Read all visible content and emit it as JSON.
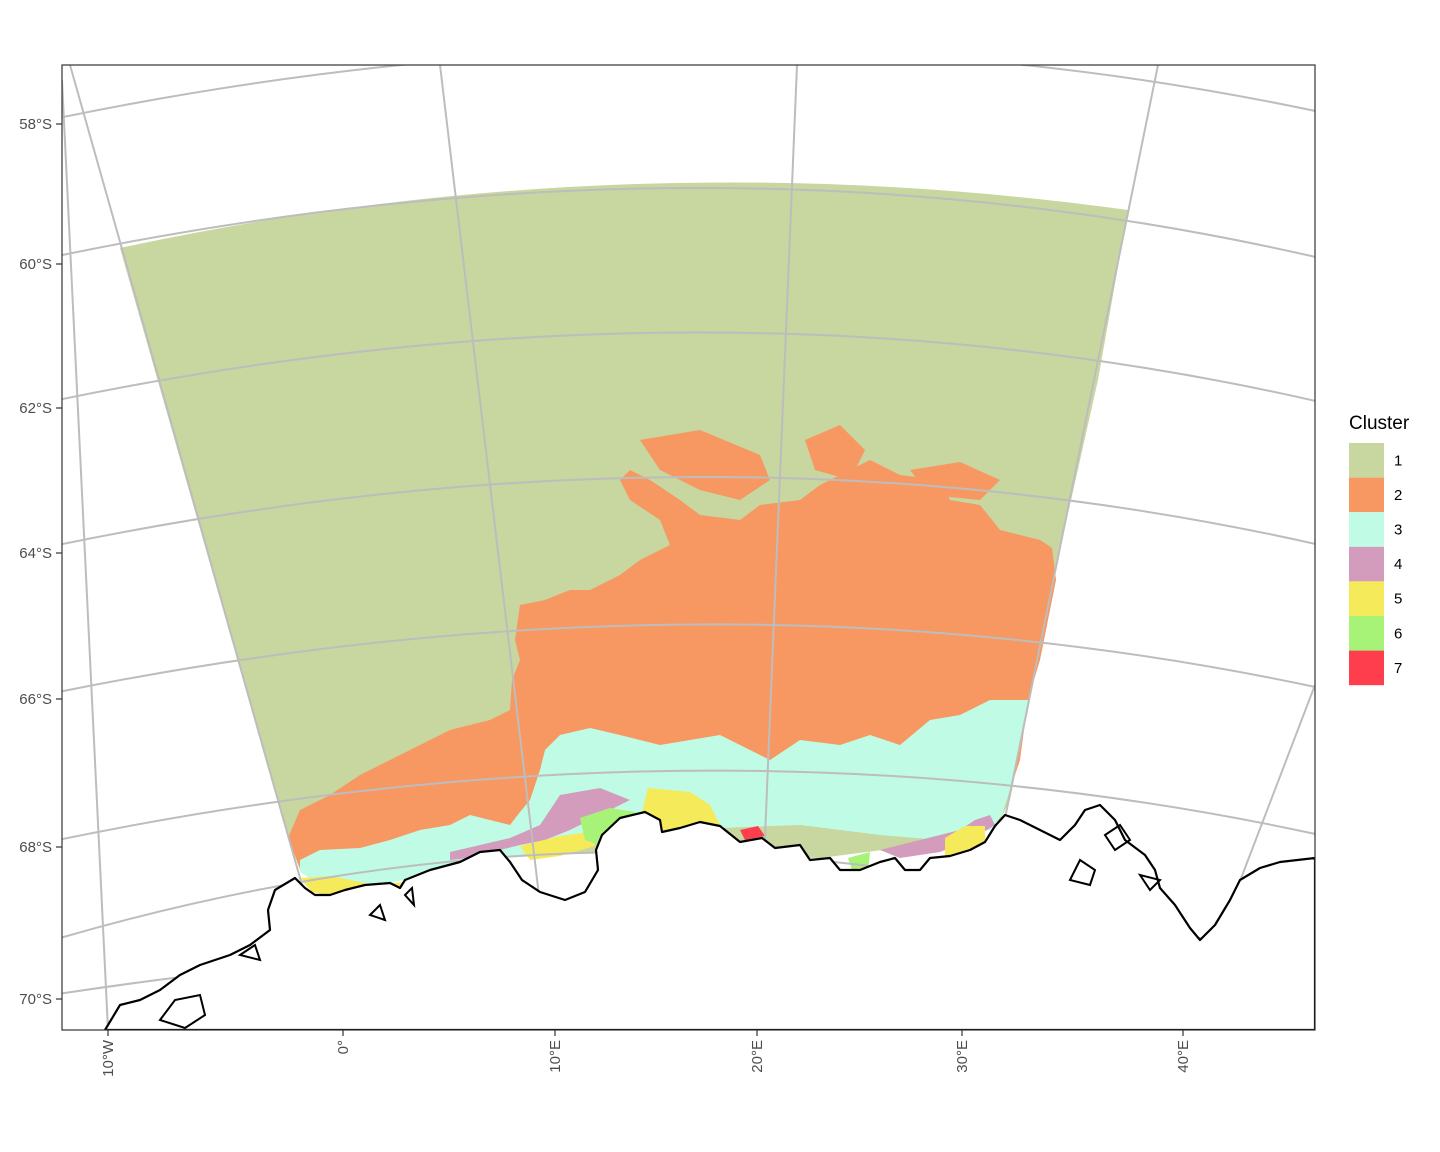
{
  "map": {
    "projection": "polar stereographic (south)",
    "lat_labels": [
      "58°S",
      "60°S",
      "62°S",
      "64°S",
      "66°S",
      "68°S",
      "70°S"
    ],
    "lon_labels": [
      "10°W",
      "0°",
      "10°E",
      "20°E",
      "30°E",
      "40°E"
    ],
    "grid_color": "#bdbdbd",
    "coastline_color": "#000000"
  },
  "legend": {
    "title": "Cluster",
    "items": [
      {
        "label": "1",
        "color": "#c8d69f"
      },
      {
        "label": "2",
        "color": "#f79762"
      },
      {
        "label": "3",
        "color": "#c0fbe5"
      },
      {
        "label": "4",
        "color": "#d39cbd"
      },
      {
        "label": "5",
        "color": "#f5ea5a"
      },
      {
        "label": "6",
        "color": "#a6f377"
      },
      {
        "label": "7",
        "color": "#fe3e4c"
      }
    ]
  }
}
